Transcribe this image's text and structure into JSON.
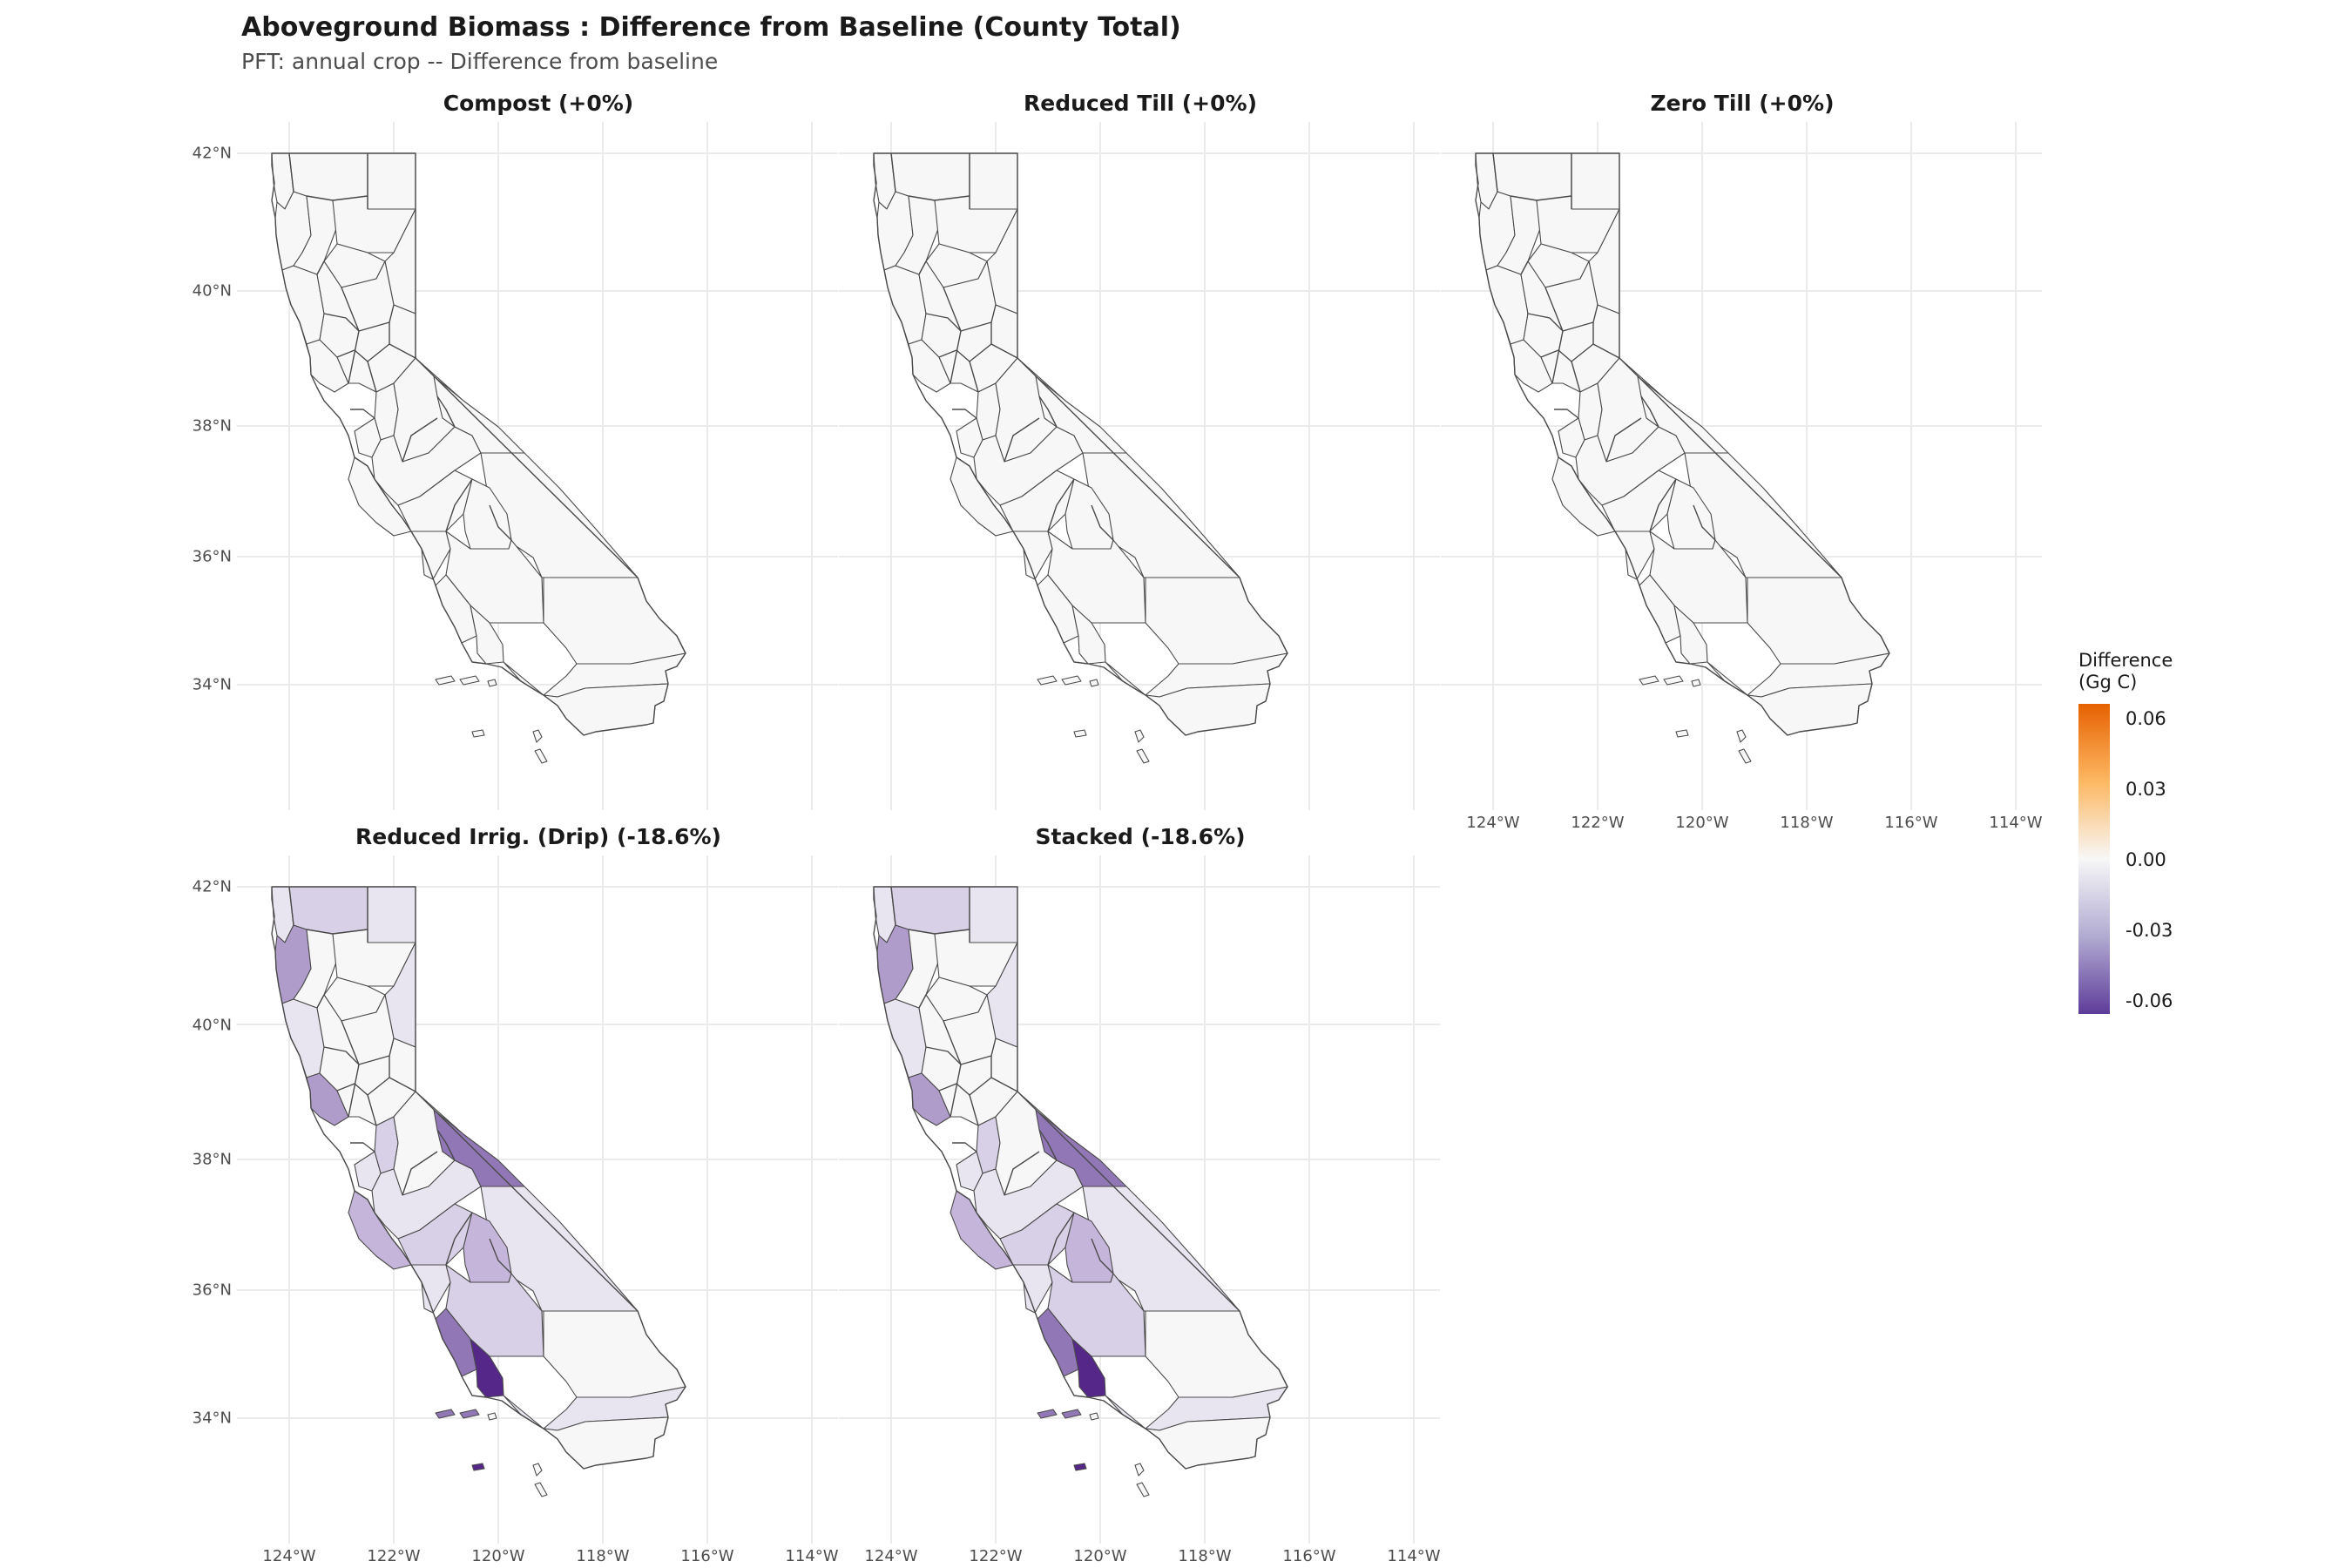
{
  "title": "Aboveground Biomass : Difference from Baseline (County Total)",
  "subtitle": "PFT: annual crop  -- Difference from baseline",
  "axes": {
    "y_ticks": [
      "42°N",
      "40°N",
      "38°N",
      "36°N",
      "34°N"
    ],
    "x_ticks": [
      "124°W",
      "122°W",
      "120°W",
      "118°W",
      "116°W",
      "114°W"
    ]
  },
  "panels": [
    {
      "id": "compost",
      "title": "Compost (+0%)"
    },
    {
      "id": "reduced-till",
      "title": "Reduced Till (+0%)"
    },
    {
      "id": "zero-till",
      "title": "Zero Till (+0%)"
    },
    {
      "id": "reduced-irrig",
      "title": "Reduced Irrig. (Drip) (-18.6%)"
    },
    {
      "id": "stacked",
      "title": "Stacked (-18.6%)"
    }
  ],
  "legend": {
    "title_line1": "Difference",
    "title_line2": "(Gg C)",
    "labels": [
      "0.06",
      "0.03",
      "0.00",
      "-0.03",
      "-0.06"
    ],
    "colors": {
      "high": "#e66101",
      "mid": "#f7f7f7",
      "low": "#5e3c99"
    }
  },
  "colors": {
    "no_change": "#f7f7f7",
    "light": "#e8e4f0",
    "medium_light": "#d8d0e6",
    "medium": "#c5b5da",
    "strong": "#b09ccb",
    "stronger": "#9277b6",
    "darkest": "#542788"
  }
}
